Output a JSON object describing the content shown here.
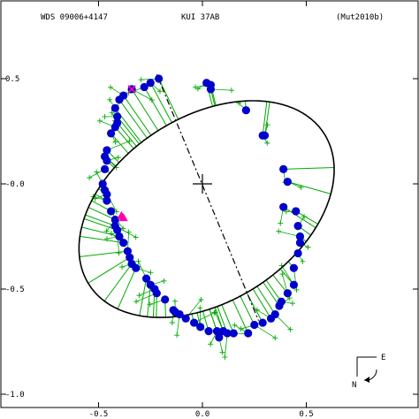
{
  "header": {
    "left": "WDS 09006+4147",
    "center": "KUI  37AB",
    "right": "(Mut2010b)"
  },
  "compass": {
    "east": "E",
    "north": "N"
  },
  "colors": {
    "orbit": "#000000",
    "obs_point": "#0000cc",
    "residual": "#00aa00",
    "special": "#ff00aa",
    "frame": "#000000"
  },
  "chart_data": {
    "type": "scatter",
    "title": "",
    "xlabel": "",
    "ylabel": "",
    "xlim": [
      -0.95,
      1.0
    ],
    "ylim": [
      -1.0,
      0.85
    ],
    "x_ticks": [
      {
        "value": -0.5,
        "label": "-0.5"
      },
      {
        "value": 0.0,
        "label": "0.0"
      },
      {
        "value": 0.5,
        "label": "0.5"
      }
    ],
    "y_ticks": [
      {
        "value": 0.5,
        "label": "0.5"
      },
      {
        "value": 0.0,
        "label": "-0.0"
      },
      {
        "value": -0.5,
        "label": "-0.5"
      },
      {
        "value": -1.0,
        "label": "-1.0"
      }
    ],
    "primary_star": [
      0.0,
      0.0
    ],
    "orbit_ellipse": {
      "center": [
        0.02,
        -0.12
      ],
      "semi_major": 0.67,
      "semi_minor": 0.44,
      "tilt_deg": -58
    },
    "line_of_nodes": {
      "from": [
        -0.22,
        0.52
      ],
      "to": [
        0.27,
        -0.65
      ]
    },
    "observations": [
      {
        "x": -0.21,
        "y": 0.5
      },
      {
        "x": -0.25,
        "y": 0.48
      },
      {
        "x": -0.28,
        "y": 0.46
      },
      {
        "x": -0.34,
        "y": 0.45
      },
      {
        "x": -0.38,
        "y": 0.42
      },
      {
        "x": -0.4,
        "y": 0.4
      },
      {
        "x": -0.42,
        "y": 0.36
      },
      {
        "x": -0.41,
        "y": 0.32
      },
      {
        "x": -0.41,
        "y": 0.29
      },
      {
        "x": -0.42,
        "y": 0.27
      },
      {
        "x": -0.44,
        "y": 0.24
      },
      {
        "x": -0.46,
        "y": 0.16
      },
      {
        "x": -0.47,
        "y": 0.13
      },
      {
        "x": -0.46,
        "y": 0.11
      },
      {
        "x": -0.47,
        "y": 0.07
      },
      {
        "x": -0.48,
        "y": 0.0
      },
      {
        "x": -0.47,
        "y": -0.03
      },
      {
        "x": -0.46,
        "y": -0.05
      },
      {
        "x": -0.46,
        "y": -0.08
      },
      {
        "x": -0.44,
        "y": -0.13
      },
      {
        "x": -0.42,
        "y": -0.17
      },
      {
        "x": -0.42,
        "y": -0.2
      },
      {
        "x": -0.41,
        "y": -0.22
      },
      {
        "x": -0.4,
        "y": -0.25
      },
      {
        "x": -0.38,
        "y": -0.28
      },
      {
        "x": -0.36,
        "y": -0.32
      },
      {
        "x": -0.35,
        "y": -0.35
      },
      {
        "x": -0.34,
        "y": -0.38
      },
      {
        "x": -0.32,
        "y": -0.4
      },
      {
        "x": -0.27,
        "y": -0.45
      },
      {
        "x": -0.25,
        "y": -0.48
      },
      {
        "x": -0.23,
        "y": -0.5
      },
      {
        "x": -0.22,
        "y": -0.52
      },
      {
        "x": -0.18,
        "y": -0.55
      },
      {
        "x": -0.14,
        "y": -0.6
      },
      {
        "x": -0.13,
        "y": -0.61
      },
      {
        "x": -0.11,
        "y": -0.62
      },
      {
        "x": -0.08,
        "y": -0.64
      },
      {
        "x": -0.04,
        "y": -0.66
      },
      {
        "x": -0.01,
        "y": -0.68
      },
      {
        "x": 0.03,
        "y": -0.7
      },
      {
        "x": 0.07,
        "y": -0.7
      },
      {
        "x": 0.08,
        "y": -0.73
      },
      {
        "x": 0.1,
        "y": -0.7
      },
      {
        "x": 0.12,
        "y": -0.71
      },
      {
        "x": 0.15,
        "y": -0.71
      },
      {
        "x": 0.22,
        "y": -0.71
      },
      {
        "x": 0.25,
        "y": -0.67
      },
      {
        "x": 0.29,
        "y": -0.66
      },
      {
        "x": 0.33,
        "y": -0.64
      },
      {
        "x": 0.35,
        "y": -0.62
      },
      {
        "x": 0.37,
        "y": -0.58
      },
      {
        "x": 0.38,
        "y": -0.56
      },
      {
        "x": 0.41,
        "y": -0.52
      },
      {
        "x": 0.44,
        "y": -0.48
      },
      {
        "x": 0.44,
        "y": -0.4
      },
      {
        "x": 0.46,
        "y": -0.33
      },
      {
        "x": 0.47,
        "y": -0.28
      },
      {
        "x": 0.47,
        "y": -0.25
      },
      {
        "x": 0.46,
        "y": -0.2
      },
      {
        "x": 0.45,
        "y": -0.13
      },
      {
        "x": 0.39,
        "y": -0.11
      },
      {
        "x": 0.41,
        "y": 0.01
      },
      {
        "x": 0.39,
        "y": 0.07
      },
      {
        "x": 0.3,
        "y": 0.23
      },
      {
        "x": 0.29,
        "y": 0.23
      },
      {
        "x": 0.21,
        "y": 0.35
      },
      {
        "x": 0.02,
        "y": 0.48
      },
      {
        "x": 0.04,
        "y": 0.47
      },
      {
        "x": 0.04,
        "y": 0.45
      }
    ],
    "special_points": [
      {
        "x": -0.34,
        "y": 0.45,
        "marker": "star"
      },
      {
        "x": -0.39,
        "y": -0.15,
        "marker": "triangle"
      },
      {
        "x": -0.38,
        "y": -0.16,
        "marker": "triangle"
      }
    ]
  }
}
